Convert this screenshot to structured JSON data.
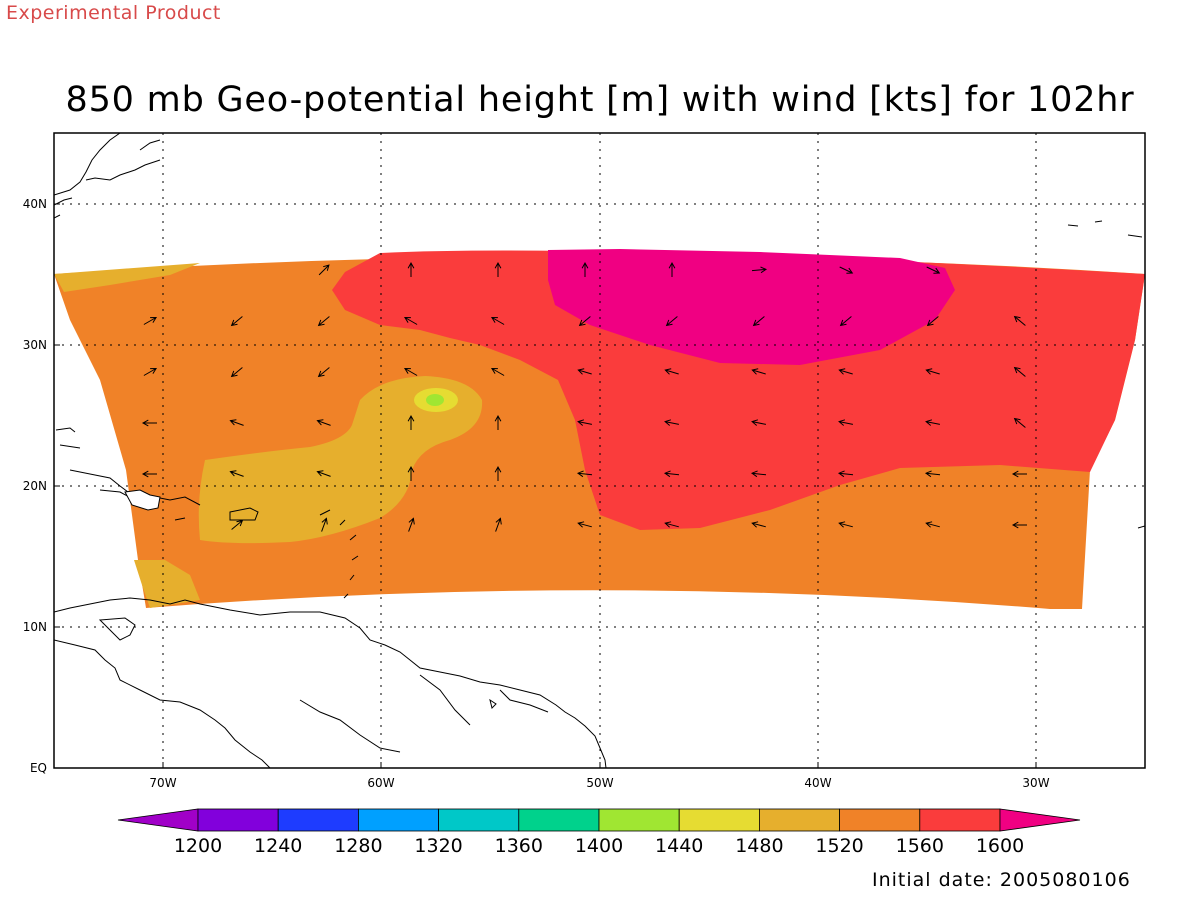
{
  "watermark": "Experimental Product",
  "title": "850 mb Geo-potential height [m] with wind [kts] for 102hr",
  "initial_date_text": "Initial date: 2005080106",
  "axes": {
    "lon_ticks": [
      "70W",
      "60W",
      "50W",
      "40W",
      "30W"
    ],
    "lat_ticks": [
      "40N",
      "30N",
      "20N",
      "10N",
      "EQ"
    ]
  },
  "colorbar": {
    "levels": [
      "1200",
      "1240",
      "1280",
      "1320",
      "1360",
      "1400",
      "1440",
      "1480",
      "1520",
      "1560",
      "1600"
    ],
    "colors": [
      "#a000c8",
      "#8200dc",
      "#1e3cff",
      "#00a0ff",
      "#00c8c8",
      "#00d28c",
      "#a0e632",
      "#e6dc32",
      "#e6af2d",
      "#f08228",
      "#fa3c3c",
      "#f00082"
    ]
  },
  "chart_data": {
    "type": "heatmap",
    "title": "850 mb Geo-potential height [m] with wind [kts] for 102hr",
    "xlabel": "",
    "ylabel": "",
    "x_range_deg_lon": [
      -75,
      -25
    ],
    "y_range_deg_lat": [
      0,
      45
    ],
    "grid": true
  }
}
